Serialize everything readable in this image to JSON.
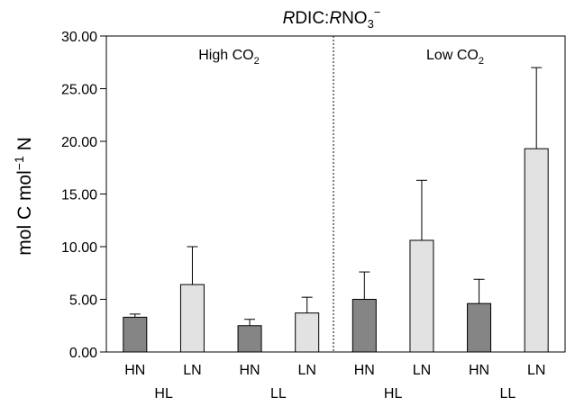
{
  "chart_data": {
    "type": "bar",
    "title_prefix": "R",
    "title_mid1": "DIC:",
    "title_mid2": "R",
    "title_mid3": "NO",
    "title_sub": "3",
    "title_sup": "−",
    "ylabel_main": "mol C mol",
    "ylabel_sup": "−1",
    "ylabel_end": " N",
    "ylim": [
      0,
      30
    ],
    "yticks": [
      "0.00",
      "5.00",
      "10.00",
      "15.00",
      "20.00",
      "25.00",
      "30.00"
    ],
    "ytick_values": [
      0,
      5,
      10,
      15,
      20,
      25,
      30
    ],
    "categories": [
      "HN",
      "LN",
      "HN",
      "LN",
      "HN",
      "LN",
      "HN",
      "LN"
    ],
    "group_labels": [
      "HL",
      "LL",
      "HL",
      "LL"
    ],
    "panels": [
      {
        "label_main": "High CO",
        "label_sub": "2"
      },
      {
        "label_main": "Low CO",
        "label_sub": "2"
      }
    ],
    "values": [
      3.3,
      6.4,
      2.5,
      3.7,
      5.0,
      10.6,
      4.6,
      19.3
    ],
    "error_upper": [
      3.6,
      10.0,
      3.1,
      5.2,
      7.6,
      16.3,
      6.9,
      27.0
    ],
    "bar_colors": [
      "#858585",
      "#e2e2e2",
      "#858585",
      "#e2e2e2",
      "#858585",
      "#e2e2e2",
      "#858585",
      "#e2e2e2"
    ],
    "grid": false
  }
}
